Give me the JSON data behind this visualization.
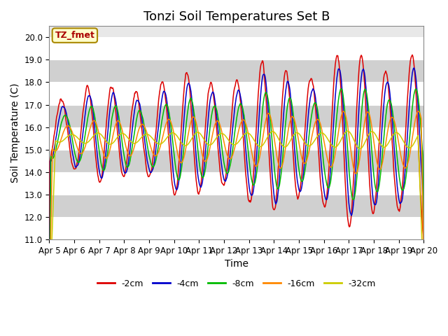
{
  "title": "Tonzi Soil Temperatures Set B",
  "xlabel": "Time",
  "ylabel": "Soil Temperature (C)",
  "ylim": [
    11.0,
    20.5
  ],
  "yticks": [
    11.0,
    12.0,
    13.0,
    14.0,
    15.0,
    16.0,
    17.0,
    18.0,
    19.0,
    20.0
  ],
  "date_labels": [
    "Apr 5",
    "Apr 6",
    "Apr 7",
    "Apr 8",
    "Apr 9",
    "Apr 10",
    "Apr 11",
    "Apr 12",
    "Apr 13",
    "Apr 14",
    "Apr 15",
    "Apr 16",
    "Apr 17",
    "Apr 18",
    "Apr 19",
    "Apr 20"
  ],
  "annotation_text": "TZ_fmet",
  "annotation_color": "#aa0000",
  "annotation_bg": "#ffffcc",
  "annotation_border": "#aa8800",
  "series_colors": [
    "#dd0000",
    "#0000cc",
    "#00bb00",
    "#ff8800",
    "#cccc00"
  ],
  "series_labels": [
    "-2cm",
    "-4cm",
    "-8cm",
    "-16cm",
    "-32cm"
  ],
  "fig_bg_color": "#ffffff",
  "plot_bg_color": "#e8e8e8",
  "band_color": "#d0d0d0",
  "grid_color": "#ffffff",
  "title_fontsize": 13,
  "axis_label_fontsize": 10,
  "tick_fontsize": 8.5,
  "n_days": 15,
  "n_pts_per_day": 48
}
